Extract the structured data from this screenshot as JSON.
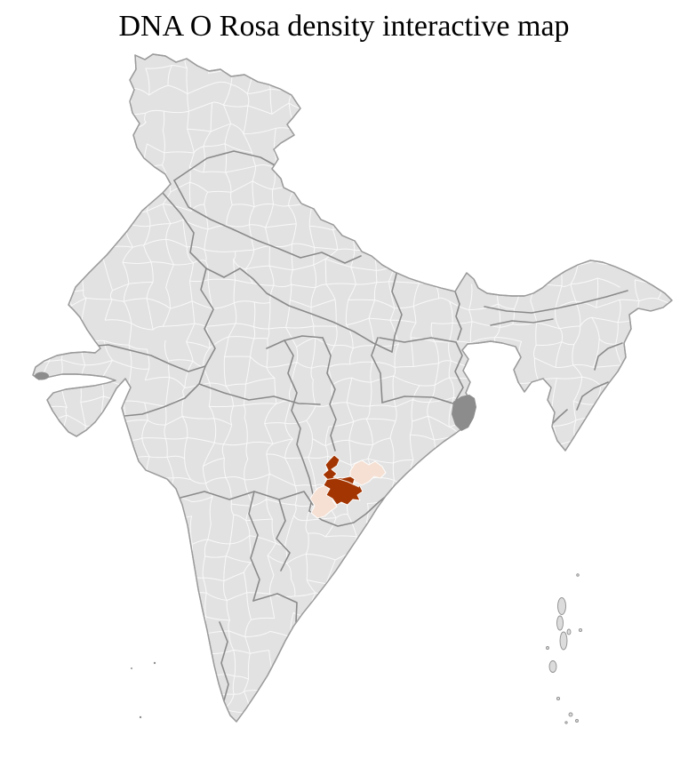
{
  "title": "DNA O Rosa density interactive map",
  "map": {
    "base_fill": "#e2e2e2",
    "district_line_color": "#fafafa",
    "state_line_color": "#8a8a8a",
    "outline_color": "#9b9b9b",
    "delta_patch_color": "#8c8c8c",
    "island_fill": "#dcdcdc",
    "island_stroke": "#8f8f8f",
    "highlights": {
      "high": {
        "color": "#a33502"
      },
      "low_ne": {
        "color": "#f5e0d3"
      },
      "low_sw": {
        "color": "#f5e0d3"
      }
    }
  }
}
